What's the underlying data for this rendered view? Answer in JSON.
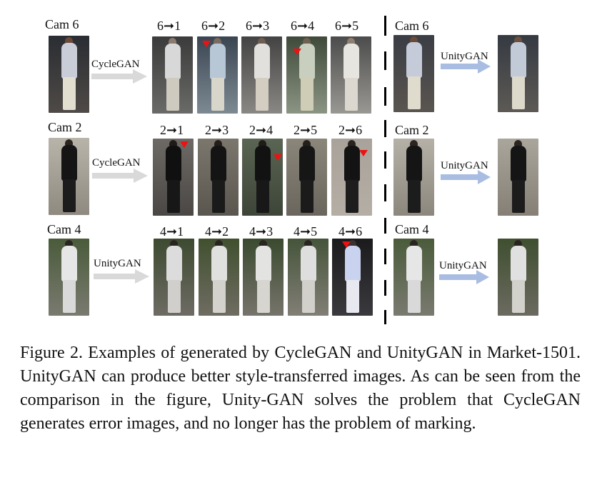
{
  "rows": [
    {
      "source_label": "Cam 6",
      "method": "CycleGAN",
      "transfer_labels": [
        "6➞1",
        "6➞2",
        "6➞3",
        "6➞4",
        "6➞5"
      ],
      "right_label": "Cam 6",
      "right_method": "UnityGAN"
    },
    {
      "source_label": "Cam 2",
      "method": "CycleGAN",
      "transfer_labels": [
        "2➞1",
        "2➞3",
        "2➞4",
        "2➞5",
        "2➞6"
      ],
      "right_label": "Cam 2",
      "right_method": "UnityGAN"
    },
    {
      "source_label": "Cam 4",
      "method": "UnityGAN",
      "transfer_labels": [
        "4➞1",
        "4➞2",
        "4➞3",
        "4➞5",
        "4➞6"
      ],
      "right_label": "Cam 4",
      "right_method": "UnityGAN"
    }
  ],
  "caption": "Figure 2. Examples of generated by CycleGAN and UnityGAN in Market-1501. UnityGAN can produce better style-transferred images. As can be seen from the comparison in the figure, Unity-GAN solves the problem that CycleGAN generates error images, and no longer has the problem of marking.",
  "colors": {
    "left_arrow": "#d9d9d9",
    "right_arrow": "#a9bde3",
    "marker": "#e11111"
  }
}
